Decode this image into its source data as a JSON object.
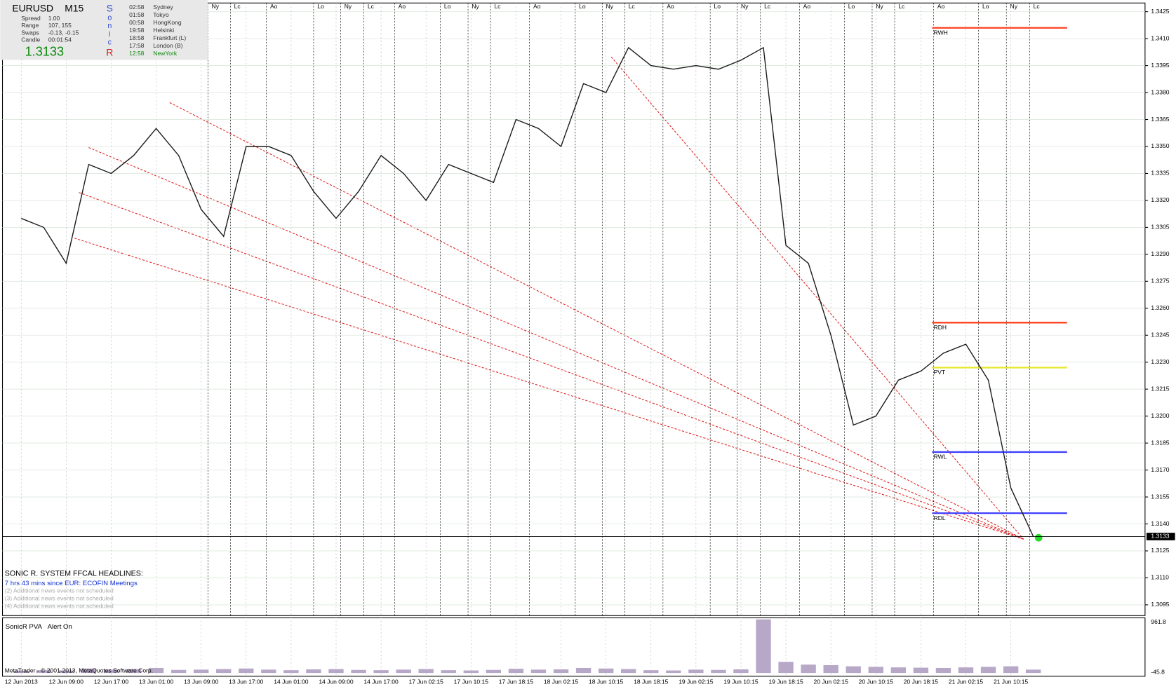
{
  "info_panel": {
    "symbol": "EURUSD",
    "timeframe": "M15",
    "rows": [
      {
        "label": "Spread",
        "value": "1.00"
      },
      {
        "label": "Range",
        "value": "107, 155"
      },
      {
        "label": "Swaps",
        "value": "-0.13, -0.15"
      },
      {
        "label": "Candle",
        "value": "00:01:54"
      }
    ],
    "price": "1.3133",
    "sonic_letters": [
      "S",
      "o",
      "n",
      "i",
      "c",
      "R"
    ],
    "sessions": [
      {
        "time": "02:58",
        "city": "Sydney"
      },
      {
        "time": "01:58",
        "city": "Tokyo"
      },
      {
        "time": "00:58",
        "city": "HongKong"
      },
      {
        "time": "19:58",
        "city": "Helsinki"
      },
      {
        "time": "18:58",
        "city": "Frankfurt  (L)"
      },
      {
        "time": "17:58",
        "city": "London  (B)"
      },
      {
        "time": "12:58",
        "city": "NewYork"
      }
    ]
  },
  "news": {
    "title": "SONIC R. SYSTEM  FFCAL HEADLINES:",
    "lines": [
      "7 hrs 43 mins since EUR: ECOFIN Meetings",
      "(2)  Additional news events not scheduled",
      "(3)  Additional news events not scheduled",
      "(4)  Additional news events not scheduled"
    ]
  },
  "session_labels": [
    "Ny",
    "Lc",
    "Ao",
    "Lo",
    "Ny",
    "Lc",
    "Ao",
    "Lo",
    "Ny",
    "Lc",
    "Ao",
    "Lo",
    "Ny",
    "Lc",
    "Ao",
    "Lo",
    "Ny",
    "Lc",
    "Ao",
    "Lo",
    "Ny",
    "Lc",
    "Ao",
    "Lo",
    "Ny",
    "Lc"
  ],
  "indicator": {
    "name": "SonicR PVA",
    "status": "Alert On"
  },
  "footer": "MetaTrader - © 2001-2013, MetaQuotes Software Corp.",
  "chart_data": [
    {
      "type": "line",
      "color": "#1a1a1a",
      "categories": [
        "12 Jun 2013",
        null,
        "12 Jun 09:00",
        null,
        "12 Jun 17:00",
        null,
        "13 Jun 01:00",
        null,
        "13 Jun 09:00",
        null,
        "13 Jun 17:00",
        null,
        "14 Jun 01:00",
        null,
        "14 Jun 09:00",
        null,
        "14 Jun 17:00",
        null,
        "17 Jun 02:15",
        null,
        "17 Jun 10:15",
        null,
        "17 Jun 18:15",
        null,
        "18 Jun 02:15",
        null,
        "18 Jun 10:15",
        null,
        "18 Jun 18:15",
        null,
        "19 Jun 02:15",
        null,
        "19 Jun 10:15",
        null,
        "19 Jun 18:15",
        null,
        "20 Jun 02:15",
        null,
        "20 Jun 10:15",
        null,
        "20 Jun 18:15",
        null,
        "21 Jun 02:15",
        null,
        "21 Jun 10:15",
        null
      ],
      "values": [
        1.331,
        1.3305,
        1.3285,
        1.334,
        1.3335,
        1.3345,
        1.336,
        1.3345,
        1.3315,
        1.33,
        1.335,
        1.335,
        1.3345,
        1.3325,
        1.331,
        1.3325,
        1.3345,
        1.3335,
        1.332,
        1.334,
        1.3335,
        1.333,
        1.3365,
        1.336,
        1.335,
        1.3385,
        1.338,
        1.3405,
        1.3395,
        1.3393,
        1.3395,
        1.3393,
        1.3398,
        1.3405,
        1.3295,
        1.3285,
        1.3245,
        1.3195,
        1.32,
        1.322,
        1.3225,
        1.3235,
        1.324,
        1.322,
        1.316,
        1.3133
      ],
      "ylim": [
        1.3089,
        1.3429
      ],
      "yticks": [
        1.3425,
        {
          "value": 1.341,
          "label": "1.3410"
        },
        1.3395,
        {
          "value": 1.338,
          "label": "1.3380"
        },
        1.3365,
        {
          "value": 1.335,
          "label": "1.3350"
        },
        1.3335,
        {
          "value": 1.332,
          "label": "1.3320"
        },
        1.3305,
        {
          "value": 1.329,
          "label": "1.3290"
        },
        1.3275,
        {
          "value": 1.326,
          "label": "1.3260"
        },
        1.3245,
        {
          "value": 1.323,
          "label": "1.3230"
        },
        1.3215,
        {
          "value": 1.32,
          "label": "1.3200"
        },
        1.3185,
        {
          "value": 1.317,
          "label": "1.3170"
        },
        1.3155,
        {
          "value": 1.314,
          "label": "1.3140"
        },
        1.3125,
        {
          "value": 1.311,
          "label": "1.3110"
        },
        1.3095
      ],
      "current_price": 1.3133,
      "levels": [
        {
          "name": "RWH",
          "value": 1.3416,
          "color": "#ff4020"
        },
        {
          "name": "RDH",
          "value": 1.3252,
          "color": "#ff4020"
        },
        {
          "name": "PVT",
          "value": 1.3227,
          "color": "#e8e830"
        },
        {
          "name": "RWL",
          "value": 1.318,
          "color": "#4040ff"
        },
        {
          "name": "RDL",
          "value": 1.3146,
          "color": "#4040ff"
        }
      ],
      "grid": true
    },
    {
      "type": "bar",
      "color": "#b8a8c8",
      "values": [
        40,
        50,
        45,
        80,
        60,
        70,
        90,
        55,
        60,
        70,
        80,
        60,
        50,
        65,
        70,
        55,
        50,
        60,
        70,
        50,
        45,
        55,
        75,
        60,
        65,
        90,
        80,
        70,
        50,
        45,
        60,
        55,
        65,
        961,
        200,
        150,
        140,
        120,
        110,
        100,
        95,
        90,
        100,
        110,
        120,
        60
      ],
      "ylim": [
        -45.8,
        961.8
      ],
      "yticks": [
        961.8,
        -45.8
      ]
    }
  ]
}
